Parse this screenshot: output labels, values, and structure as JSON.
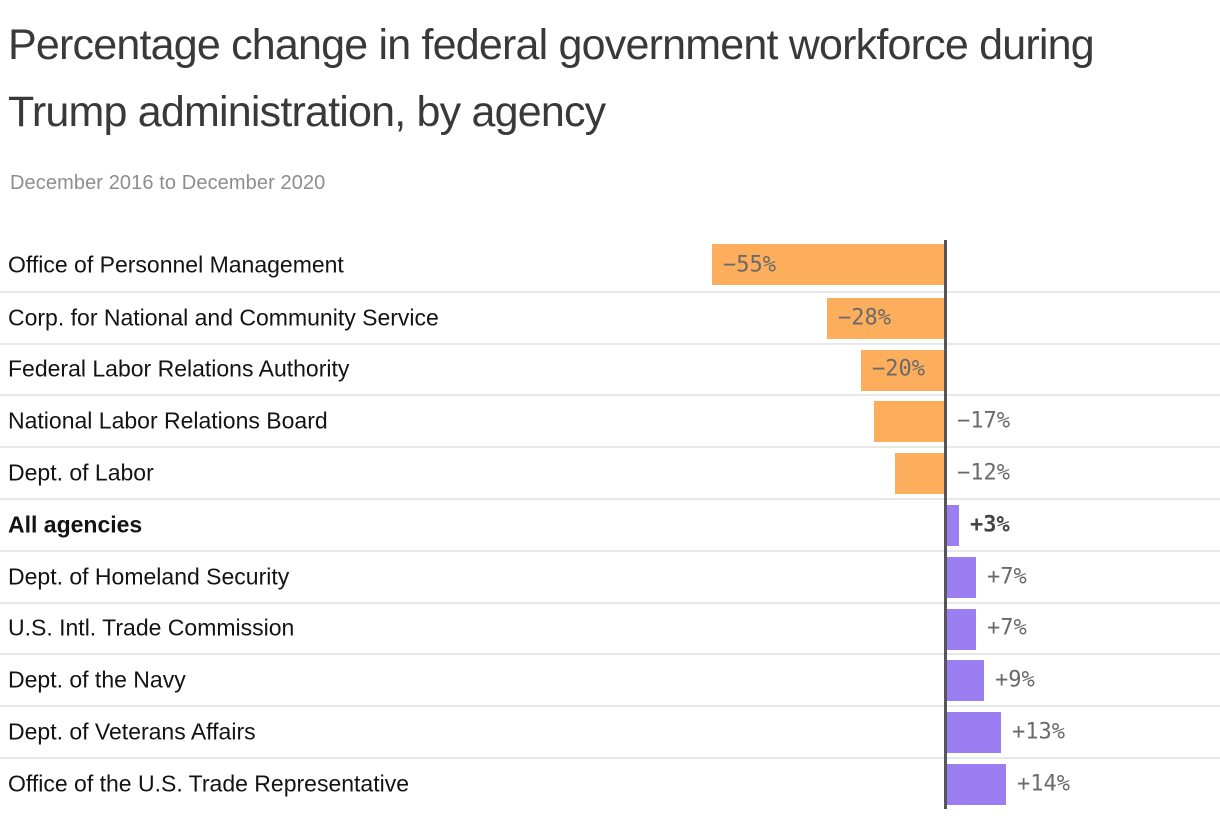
{
  "header": {
    "title": "Percentage change in federal government workforce during Trump administration, by agency",
    "subtitle": "December 2016 to December 2020"
  },
  "colors": {
    "negative_bar": "#fcae5c",
    "positive_bar": "#9c7ef3",
    "axis_line": "#55555a",
    "row_separator": "#e8e8e8",
    "agency_label": "#131313",
    "value_label": "#6a6a6a",
    "value_label_emphasis": "#454545",
    "title_text": "#39393b",
    "subtitle_text": "#8d8d90"
  },
  "chart_data": {
    "type": "bar",
    "orientation": "horizontal-diverging",
    "unit": "%",
    "title": "Percentage change in federal government workforce during Trump administration, by agency",
    "subtitle": "December 2016 to December 2020",
    "xlabel": "",
    "ylabel": "",
    "xlim": [
      -60,
      60
    ],
    "grid": false,
    "legend": false,
    "zero_baseline": true,
    "categories": [
      "Office of Personnel Management",
      "Corp. for National and Community Service",
      "Federal Labor Relations Authority",
      "National Labor Relations Board",
      "Dept. of Labor",
      "All agencies",
      "Dept. of Homeland Security",
      "U.S. Intl. Trade Commission",
      "Dept. of the Navy",
      "Dept. of Veterans Affairs",
      "Office of the U.S. Trade Representative"
    ],
    "values": [
      -55,
      -28,
      -20,
      -17,
      -12,
      3,
      7,
      7,
      9,
      13,
      14
    ],
    "display_values": [
      "−55%",
      "−28%",
      "−20%",
      "−17%",
      "−12%",
      "+3%",
      "+7%",
      "+7%",
      "+9%",
      "+13%",
      "+14%"
    ],
    "emphasized_category": "All agencies"
  }
}
